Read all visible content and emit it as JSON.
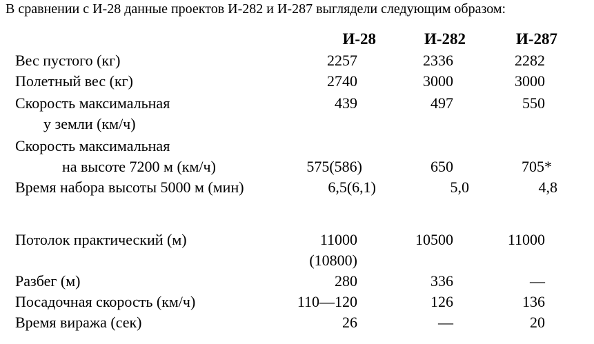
{
  "intro": "В сравнении с И-28 данные проектов И-282 и И-287 выглядели следующим образом:",
  "table": {
    "columns": [
      "И-28",
      "И-282",
      "И-287"
    ],
    "rows": [
      {
        "label": [
          "Вес пустого (кг)"
        ],
        "cells": [
          [
            "2257"
          ],
          [
            "2336"
          ],
          [
            "2282"
          ]
        ]
      },
      {
        "label": [
          "Полетный вес (кг)"
        ],
        "cells": [
          [
            "2740"
          ],
          [
            "3000"
          ],
          [
            "3000"
          ]
        ]
      },
      {
        "label": [
          "Скорость максимальная",
          "у земли (км/ч)"
        ],
        "cells": [
          [
            "439"
          ],
          [
            "497"
          ],
          [
            "550"
          ]
        ]
      },
      {
        "label": [
          "Скорость максимальная",
          "на высоте 7200 м (км/ч)"
        ],
        "cells": [
          [
            "575(586)"
          ],
          [
            "650"
          ],
          [
            "705*"
          ]
        ]
      },
      {
        "label": [
          "Время набора высоты 5000 м (мин)"
        ],
        "cells": [
          [
            "6,5(6,1)"
          ],
          [
            "5,0"
          ],
          [
            "4,8"
          ]
        ]
      },
      {
        "label": [
          "Потолок практический (м)"
        ],
        "cells": [
          [
            "11000",
            "(10800)"
          ],
          [
            "10500"
          ],
          [
            "11000"
          ]
        ]
      },
      {
        "label": [
          "Разбег (м)"
        ],
        "cells": [
          [
            "280"
          ],
          [
            "336"
          ],
          [
            "—"
          ]
        ]
      },
      {
        "label": [
          "Посадочная скорость (км/ч)"
        ],
        "cells": [
          [
            "110—120"
          ],
          [
            "126"
          ],
          [
            "136"
          ]
        ]
      },
      {
        "label": [
          "Время виража (сек)"
        ],
        "cells": [
          [
            "26"
          ],
          [
            "—"
          ],
          [
            "20"
          ]
        ]
      }
    ]
  }
}
